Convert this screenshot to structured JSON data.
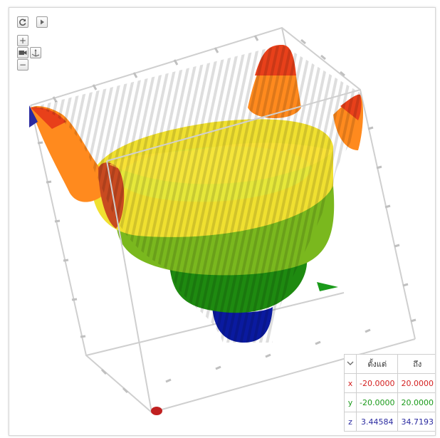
{
  "toolbar": {
    "reset_icon": "reset-icon",
    "play_icon": "play-icon",
    "zoom_in_label": "+",
    "zoom_out_label": "−",
    "camera_icon": "camera-icon",
    "axes_icon": "axes-icon"
  },
  "ranges": {
    "header_from": "ตั้งแต่",
    "header_to": "ถึง",
    "rows": [
      {
        "axis": "x",
        "from": "-20.0000",
        "to": "20.0000",
        "color": "#d42020"
      },
      {
        "axis": "y",
        "from": "-20.0000",
        "to": "20.0000",
        "color": "#1a9a1a"
      },
      {
        "axis": "z",
        "from": "3.44584",
        "to": "34.7193",
        "color": "#2a2aa0"
      }
    ]
  },
  "colors": {
    "x_axis": "#d42020",
    "y_axis": "#1a9a1a",
    "z_axis": "#2a2aa0"
  }
}
